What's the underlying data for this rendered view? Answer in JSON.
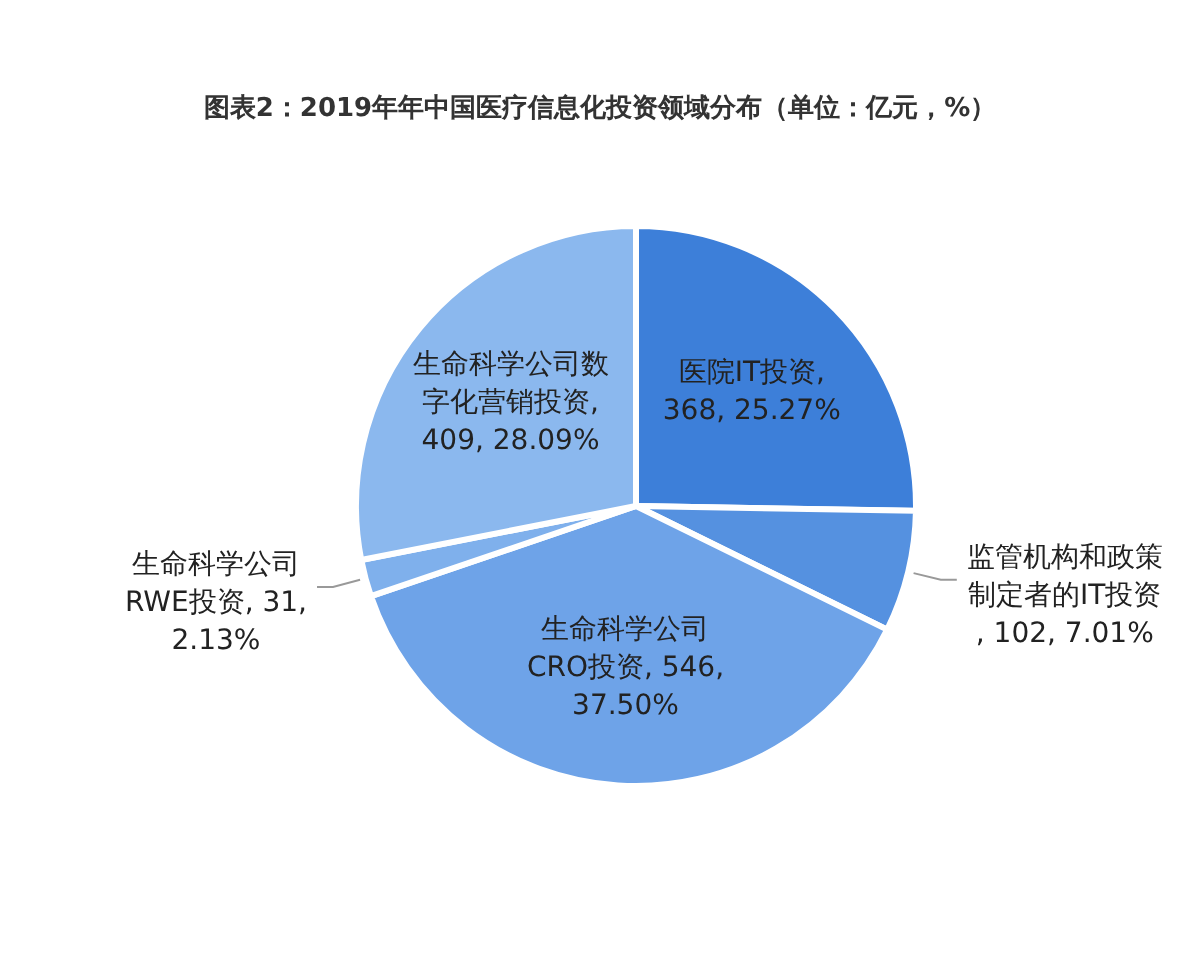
{
  "chart_data": {
    "type": "pie",
    "title": "图表2：2019年年中国医疗信息化投资领域分布（单位：亿元，%）",
    "categories": [
      "医院IT投资",
      "监管机构和政策制定者的IT投资",
      "生命科学公司CRO投资",
      "生命科学公司RWE投资",
      "生命科学公司数字化营销投资"
    ],
    "values": [
      368,
      102,
      546,
      31,
      409
    ],
    "value_labels": [
      ", 368, 25.27%",
      ", 102, 7.01%",
      ", 546, 37.50%",
      ", 31, 2.13%",
      ", 409, 28.09%"
    ],
    "colors": [
      "#3d7fd9",
      "#5591e0",
      "#6ea3e8",
      "#7fb0ec",
      "#8bb8ee"
    ]
  }
}
